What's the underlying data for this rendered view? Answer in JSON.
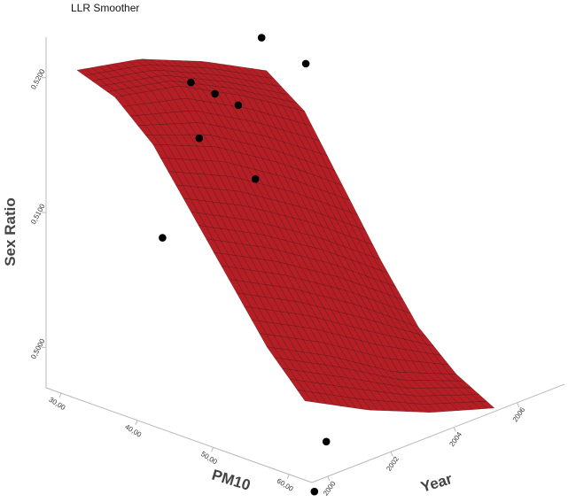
{
  "chart_data": {
    "type": "surface3d",
    "title": "LLR Smoother",
    "xlabel": "PM10",
    "ylabel": "Year",
    "zlabel": "Sex Ratio",
    "x_ticks": [
      "30,00",
      "40,00",
      "50,00",
      "60,00"
    ],
    "y_ticks": [
      "2000",
      "2002",
      "2004",
      "2006"
    ],
    "z_ticks": [
      "0,5000",
      "0,5100",
      "0,5200"
    ],
    "xlim": [
      28,
      63
    ],
    "ylim": [
      1999.5,
      2007.5
    ],
    "zlim": [
      0.497,
      0.523
    ],
    "surface": {
      "pm10_grid": [
        30,
        35,
        40,
        45,
        50,
        55,
        60
      ],
      "year_grid": [
        2000,
        2002,
        2004,
        2006
      ],
      "sex_ratio": [
        [
          0.5205,
          0.5195,
          0.5175,
          0.515
        ],
        [
          0.5195,
          0.5185,
          0.516,
          0.513
        ],
        [
          0.517,
          0.515,
          0.512,
          0.5085
        ],
        [
          0.513,
          0.5105,
          0.5075,
          0.504
        ],
        [
          0.509,
          0.5065,
          0.5035,
          0.5
        ],
        [
          0.505,
          0.5025,
          0.4995,
          0.4975
        ],
        [
          0.502,
          0.4995,
          0.4975,
          0.496
        ]
      ]
    },
    "points": [
      {
        "pm10": 46.5,
        "year": 2000.4,
        "sex_ratio": 0.5217
      },
      {
        "pm10": 40.0,
        "year": 2000.3,
        "sex_ratio": 0.5098
      },
      {
        "pm10": 44.0,
        "year": 2000.5,
        "sex_ratio": 0.5178
      },
      {
        "pm10": 40.0,
        "year": 2001.2,
        "sex_ratio": 0.5205
      },
      {
        "pm10": 46.0,
        "year": 2001.8,
        "sex_ratio": 0.514
      },
      {
        "pm10": 42.5,
        "year": 2002.1,
        "sex_ratio": 0.5185
      },
      {
        "pm10": 41.0,
        "year": 2003.2,
        "sex_ratio": 0.5222
      },
      {
        "pm10": 41.0,
        "year": 2004.6,
        "sex_ratio": 0.519
      },
      {
        "pm10": 60.0,
        "year": 2000.3,
        "sex_ratio": 0.495
      },
      {
        "pm10": 52.0,
        "year": 2002.6,
        "sex_ratio": 0.495
      }
    ],
    "surface_color": "#b51e24",
    "mesh_color": "#3a0a0c",
    "point_color": "#000000",
    "axis_color": "#b8b8b8"
  }
}
